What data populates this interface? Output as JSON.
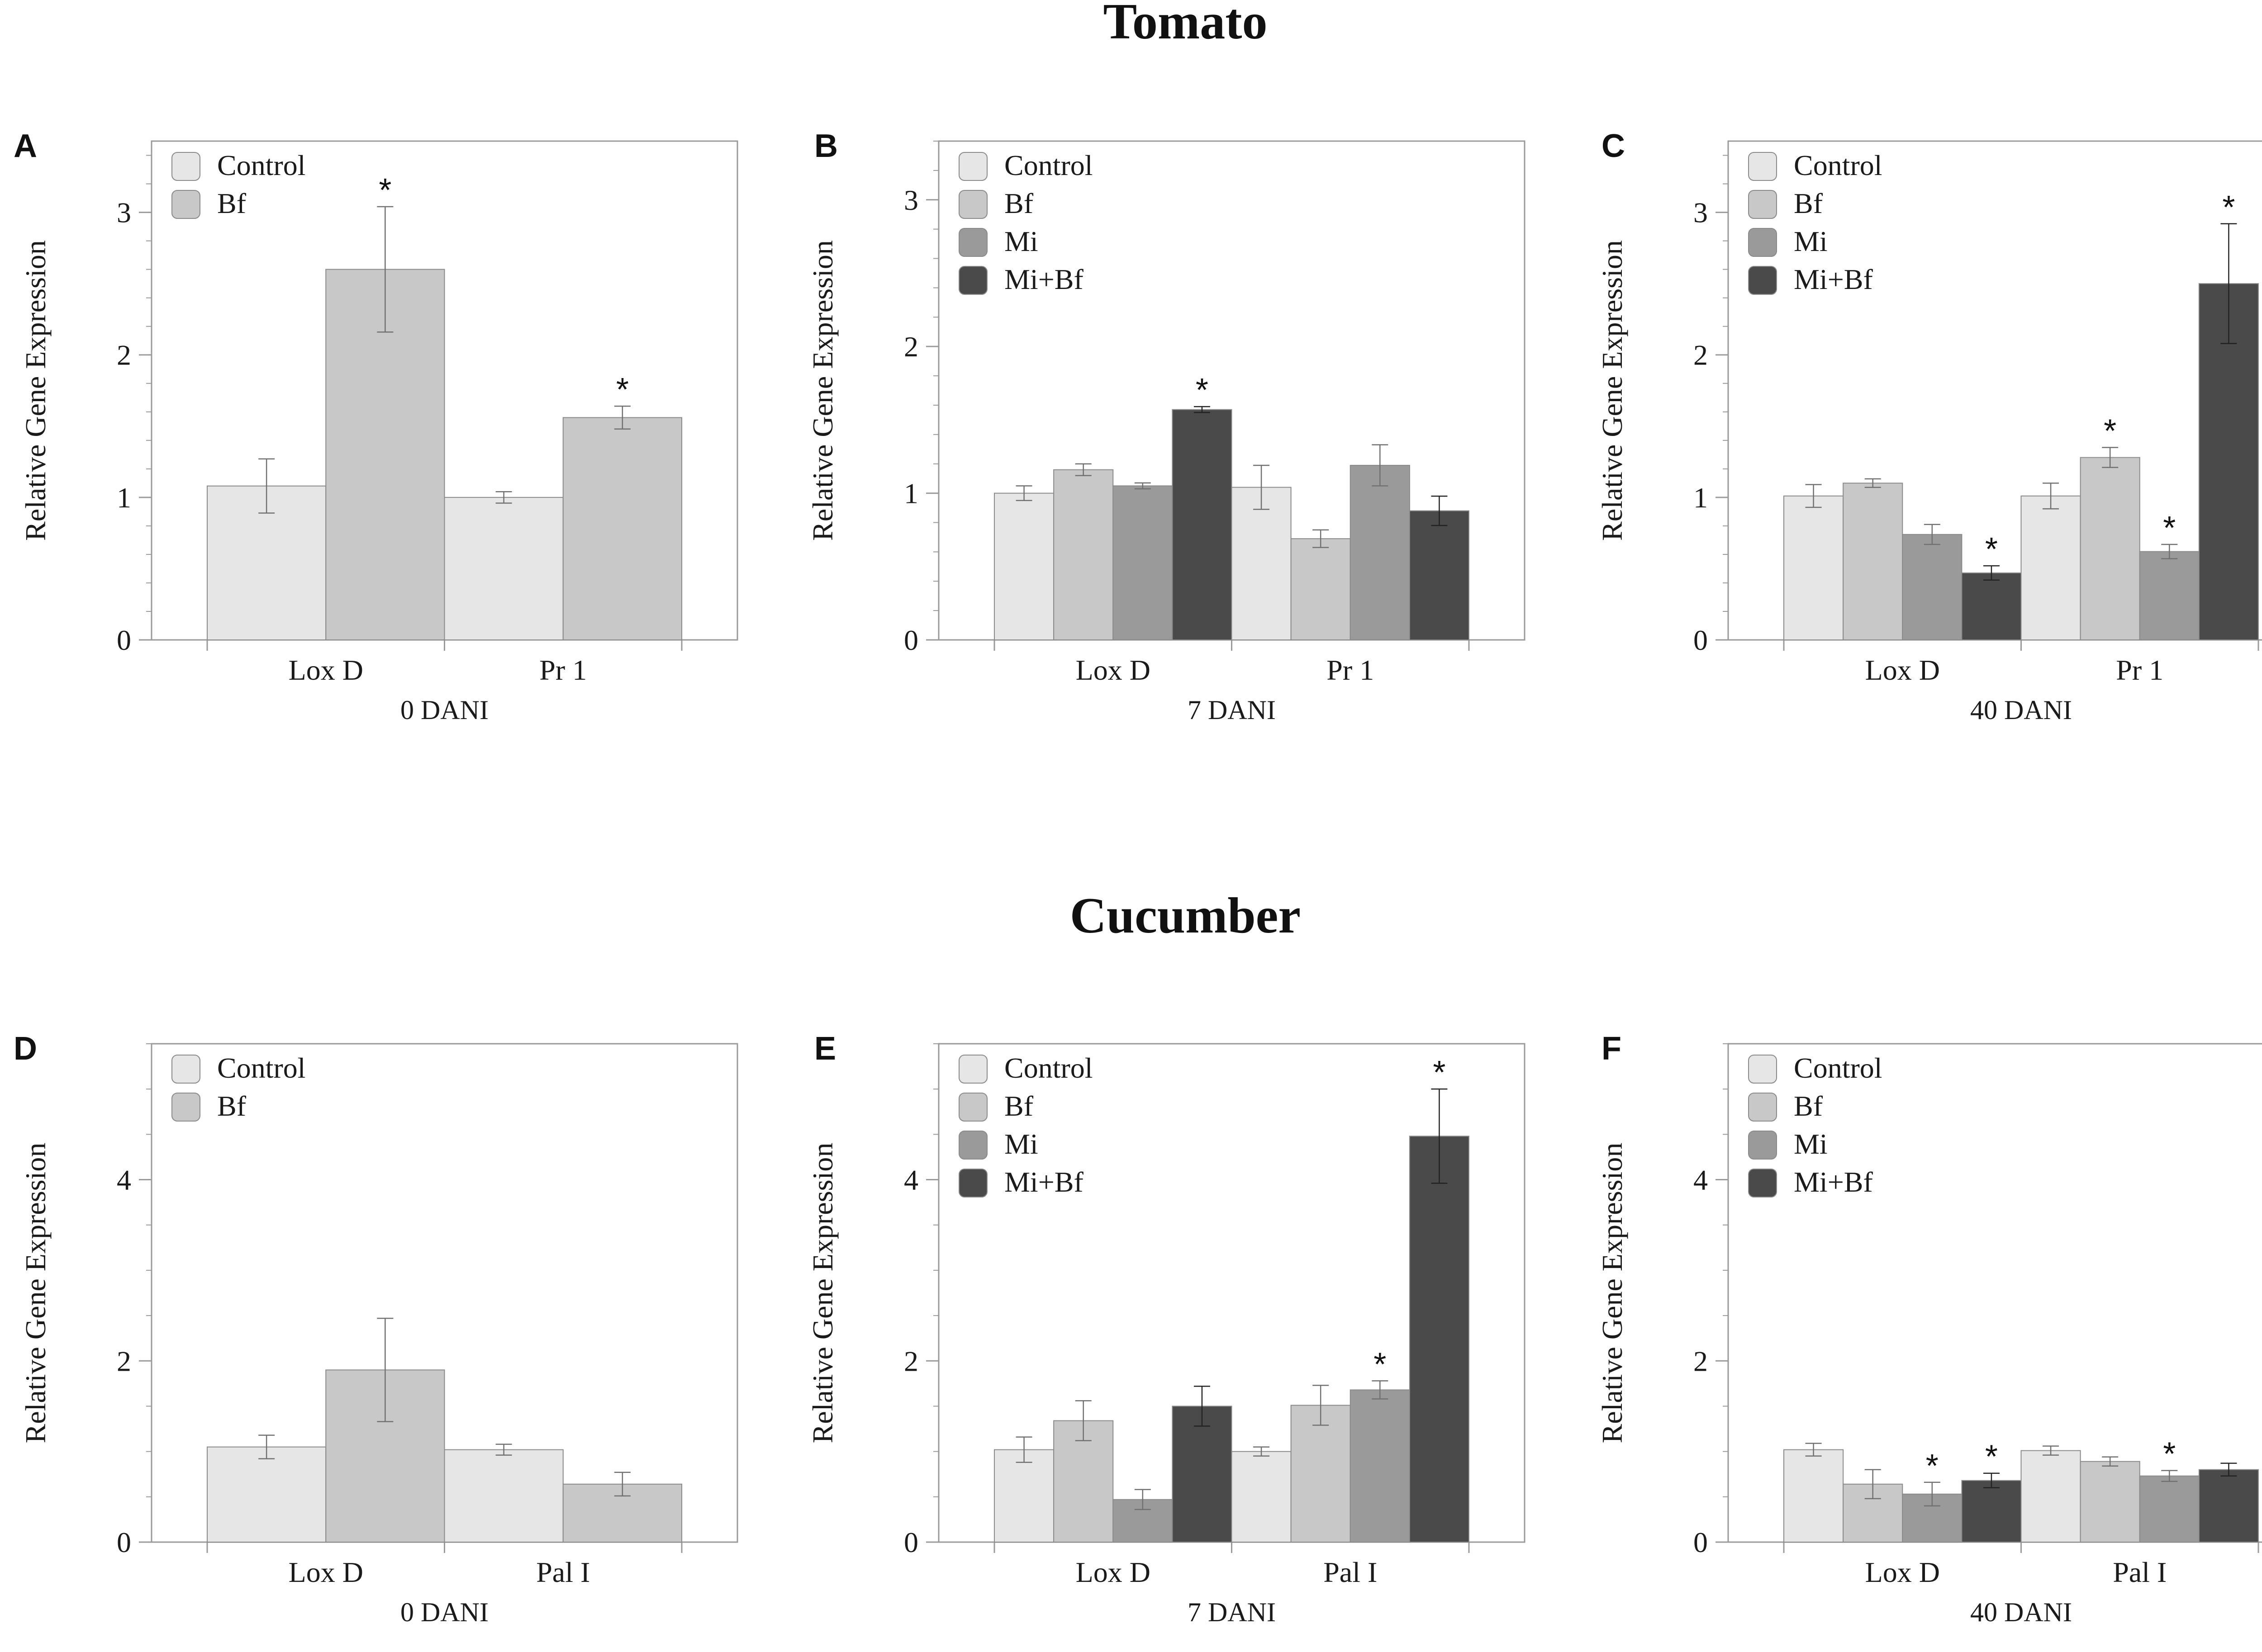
{
  "section_titles": {
    "tomato": "Tomato",
    "cucumber": "Cucumber"
  },
  "y_axis_label": "Relative Gene Expression",
  "colors": {
    "Control": "#e6e6e6",
    "Bf": "#c8c8c8",
    "Mi": "#9a9a9a",
    "Mi+Bf": "#4a4a4a",
    "axis": "#9a9a9a",
    "text": "#1a1a1a"
  },
  "chart_data": [
    {
      "panel": "A",
      "type": "bar",
      "xlabel": "0 DANI",
      "ylabel": "Relative Gene Expression",
      "ylim": [
        0,
        3.5
      ],
      "yticks": [
        0,
        1,
        2,
        3
      ],
      "categories": [
        "Lox D",
        "Pr 1"
      ],
      "legend": [
        "Control",
        "Bf"
      ],
      "series": [
        {
          "name": "Control",
          "values": [
            1.08,
            1.0
          ],
          "errors": [
            0.19,
            0.04
          ],
          "sig": [
            false,
            false
          ]
        },
        {
          "name": "Bf",
          "values": [
            2.6,
            1.56
          ],
          "errors": [
            0.44,
            0.08
          ],
          "sig": [
            true,
            true
          ]
        }
      ]
    },
    {
      "panel": "B",
      "type": "bar",
      "xlabel": "7 DANI",
      "ylabel": "Relative Gene Expression",
      "ylim": [
        0,
        3.4
      ],
      "yticks": [
        0,
        1,
        2,
        3
      ],
      "categories": [
        "Lox D",
        "Pr 1"
      ],
      "legend": [
        "Control",
        "Bf",
        "Mi",
        "Mi+Bf"
      ],
      "series": [
        {
          "name": "Control",
          "values": [
            1.0,
            1.04
          ],
          "errors": [
            0.05,
            0.15
          ],
          "sig": [
            false,
            false
          ]
        },
        {
          "name": "Bf",
          "values": [
            1.16,
            0.69
          ],
          "errors": [
            0.04,
            0.06
          ],
          "sig": [
            false,
            false
          ]
        },
        {
          "name": "Mi",
          "values": [
            1.05,
            1.19
          ],
          "errors": [
            0.02,
            0.14
          ],
          "sig": [
            false,
            false
          ]
        },
        {
          "name": "Mi+Bf",
          "values": [
            1.57,
            0.88
          ],
          "errors": [
            0.02,
            0.1
          ],
          "sig": [
            true,
            false
          ]
        }
      ]
    },
    {
      "panel": "C",
      "type": "bar",
      "xlabel": "40 DANI",
      "ylabel": "Relative Gene Expression",
      "ylim": [
        0,
        3.5
      ],
      "yticks": [
        0,
        1,
        2,
        3
      ],
      "categories": [
        "Lox D",
        "Pr 1"
      ],
      "legend": [
        "Control",
        "Bf",
        "Mi",
        "Mi+Bf"
      ],
      "series": [
        {
          "name": "Control",
          "values": [
            1.01,
            1.01
          ],
          "errors": [
            0.08,
            0.09
          ],
          "sig": [
            false,
            false
          ]
        },
        {
          "name": "Bf",
          "values": [
            1.1,
            1.28
          ],
          "errors": [
            0.03,
            0.07
          ],
          "sig": [
            false,
            true
          ]
        },
        {
          "name": "Mi",
          "values": [
            0.74,
            0.62
          ],
          "errors": [
            0.07,
            0.05
          ],
          "sig": [
            false,
            true
          ]
        },
        {
          "name": "Mi+Bf",
          "values": [
            0.47,
            2.5
          ],
          "errors": [
            0.05,
            0.42
          ],
          "sig": [
            true,
            true
          ]
        }
      ]
    },
    {
      "panel": "D",
      "type": "bar",
      "xlabel": "0 DANI",
      "ylabel": "Relative Gene Expression",
      "ylim": [
        0,
        5.5
      ],
      "yticks": [
        0,
        2,
        4
      ],
      "categories": [
        "Lox D",
        "Pal I"
      ],
      "legend": [
        "Control",
        "Bf"
      ],
      "series": [
        {
          "name": "Control",
          "values": [
            1.05,
            1.02
          ],
          "errors": [
            0.13,
            0.06
          ],
          "sig": [
            false,
            false
          ]
        },
        {
          "name": "Bf",
          "values": [
            1.9,
            0.64
          ],
          "errors": [
            0.57,
            0.13
          ],
          "sig": [
            false,
            false
          ]
        }
      ]
    },
    {
      "panel": "E",
      "type": "bar",
      "xlabel": "7 DANI",
      "ylabel": "Relative Gene Expression",
      "ylim": [
        0,
        5.5
      ],
      "yticks": [
        0,
        2,
        4
      ],
      "categories": [
        "Lox D",
        "Pal I"
      ],
      "legend": [
        "Control",
        "Bf",
        "Mi",
        "Mi+Bf"
      ],
      "series": [
        {
          "name": "Control",
          "values": [
            1.02,
            1.0
          ],
          "errors": [
            0.14,
            0.05
          ],
          "sig": [
            false,
            false
          ]
        },
        {
          "name": "Bf",
          "values": [
            1.34,
            1.51
          ],
          "errors": [
            0.22,
            0.22
          ],
          "sig": [
            false,
            false
          ]
        },
        {
          "name": "Mi",
          "values": [
            0.47,
            1.68
          ],
          "errors": [
            0.11,
            0.1
          ],
          "sig": [
            false,
            true
          ]
        },
        {
          "name": "Mi+Bf",
          "values": [
            1.5,
            4.48
          ],
          "errors": [
            0.22,
            0.52
          ],
          "sig": [
            false,
            true
          ]
        }
      ]
    },
    {
      "panel": "F",
      "type": "bar",
      "xlabel": "40 DANI",
      "ylabel": "Relative Gene Expression",
      "ylim": [
        0,
        5.5
      ],
      "yticks": [
        0,
        2,
        4
      ],
      "categories": [
        "Lox D",
        "Pal I"
      ],
      "legend": [
        "Control",
        "Bf",
        "Mi",
        "Mi+Bf"
      ],
      "series": [
        {
          "name": "Control",
          "values": [
            1.02,
            1.01
          ],
          "errors": [
            0.07,
            0.05
          ],
          "sig": [
            false,
            false
          ]
        },
        {
          "name": "Bf",
          "values": [
            0.64,
            0.89
          ],
          "errors": [
            0.16,
            0.05
          ],
          "sig": [
            false,
            false
          ]
        },
        {
          "name": "Mi",
          "values": [
            0.53,
            0.73
          ],
          "errors": [
            0.13,
            0.06
          ],
          "sig": [
            true,
            true
          ]
        },
        {
          "name": "Mi+Bf",
          "values": [
            0.68,
            0.8
          ],
          "errors": [
            0.08,
            0.07
          ],
          "sig": [
            true,
            false
          ]
        }
      ]
    }
  ]
}
